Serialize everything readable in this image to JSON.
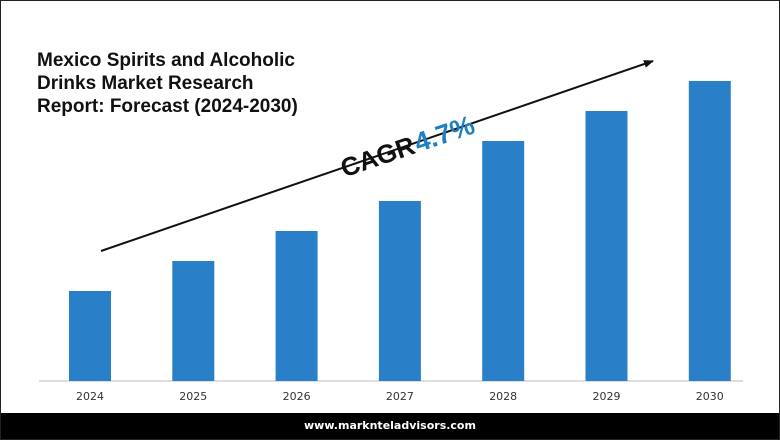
{
  "chart_data": {
    "type": "bar",
    "title_lines": [
      "Mexico Spirits and Alcoholic",
      "Drinks Market Research",
      "Report: Forecast (2024-2030)"
    ],
    "categories": [
      "2024",
      "2025",
      "2026",
      "2027",
      "2028",
      "2029",
      "2030"
    ],
    "values": [
      30,
      40,
      50,
      60,
      80,
      90,
      100
    ],
    "ylim": [
      0,
      100
    ],
    "y_axis_shown": false,
    "grid": false,
    "annotation": {
      "label": "CAGR",
      "value": "4.7%",
      "arrow": "upward trend arrow above bars"
    },
    "colors": {
      "bar": "#2a80c8",
      "cagr_label": "#111111",
      "cagr_value": "#1e7fc4",
      "arrow": "#111111"
    }
  },
  "footer": {
    "url": "www.marknteladvisors.com"
  }
}
